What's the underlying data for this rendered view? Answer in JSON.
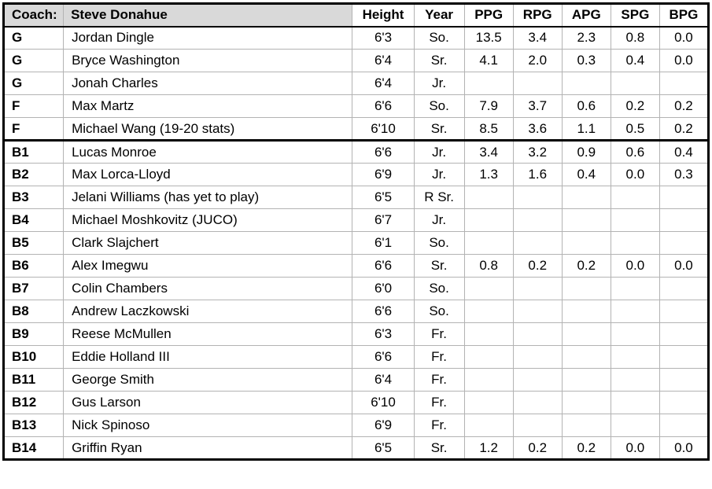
{
  "header": {
    "coach_label": "Coach:",
    "coach_name": "Steve Donahue",
    "columns": [
      "Height",
      "Year",
      "PPG",
      "RPG",
      "APG",
      "SPG",
      "BPG"
    ]
  },
  "colors": {
    "header_bg": "#d9d9d9",
    "grid_line": "#b3b3b3",
    "section_border": "#000000",
    "row_bg": "#ffffff",
    "text": "#000000"
  },
  "rows": [
    {
      "pos": "G",
      "name": "Jordan Dingle",
      "height": "6'3",
      "year": "So.",
      "ppg": "13.5",
      "rpg": "3.4",
      "apg": "2.3",
      "spg": "0.8",
      "bpg": "0.0",
      "section_start": false
    },
    {
      "pos": "G",
      "name": "Bryce Washington",
      "height": "6'4",
      "year": "Sr.",
      "ppg": "4.1",
      "rpg": "2.0",
      "apg": "0.3",
      "spg": "0.4",
      "bpg": "0.0",
      "section_start": false
    },
    {
      "pos": "G",
      "name": "Jonah Charles",
      "height": "6'4",
      "year": "Jr.",
      "ppg": "",
      "rpg": "",
      "apg": "",
      "spg": "",
      "bpg": "",
      "section_start": false
    },
    {
      "pos": "F",
      "name": "Max Martz",
      "height": "6'6",
      "year": "So.",
      "ppg": "7.9",
      "rpg": "3.7",
      "apg": "0.6",
      "spg": "0.2",
      "bpg": "0.2",
      "section_start": false
    },
    {
      "pos": "F",
      "name": "Michael Wang (19-20 stats)",
      "height": "6'10",
      "year": "Sr.",
      "ppg": "8.5",
      "rpg": "3.6",
      "apg": "1.1",
      "spg": "0.5",
      "bpg": "0.2",
      "section_start": false
    },
    {
      "pos": "B1",
      "name": "Lucas Monroe",
      "height": "6'6",
      "year": "Jr.",
      "ppg": "3.4",
      "rpg": "3.2",
      "apg": "0.9",
      "spg": "0.6",
      "bpg": "0.4",
      "section_start": true
    },
    {
      "pos": "B2",
      "name": "Max Lorca-Lloyd",
      "height": "6'9",
      "year": "Jr.",
      "ppg": "1.3",
      "rpg": "1.6",
      "apg": "0.4",
      "spg": "0.0",
      "bpg": "0.3",
      "section_start": false
    },
    {
      "pos": "B3",
      "name": "Jelani Williams (has yet to play)",
      "height": "6'5",
      "year": "R Sr.",
      "ppg": "",
      "rpg": "",
      "apg": "",
      "spg": "",
      "bpg": "",
      "section_start": false
    },
    {
      "pos": "B4",
      "name": "Michael Moshkovitz (JUCO)",
      "height": "6'7",
      "year": "Jr.",
      "ppg": "",
      "rpg": "",
      "apg": "",
      "spg": "",
      "bpg": "",
      "section_start": false
    },
    {
      "pos": "B5",
      "name": "Clark Slajchert",
      "height": "6'1",
      "year": "So.",
      "ppg": "",
      "rpg": "",
      "apg": "",
      "spg": "",
      "bpg": "",
      "section_start": false
    },
    {
      "pos": "B6",
      "name": "Alex Imegwu",
      "height": "6'6",
      "year": "Sr.",
      "ppg": "0.8",
      "rpg": "0.2",
      "apg": "0.2",
      "spg": "0.0",
      "bpg": "0.0",
      "section_start": false
    },
    {
      "pos": "B7",
      "name": "Colin Chambers",
      "height": "6'0",
      "year": "So.",
      "ppg": "",
      "rpg": "",
      "apg": "",
      "spg": "",
      "bpg": "",
      "section_start": false
    },
    {
      "pos": "B8",
      "name": "Andrew Laczkowski",
      "height": "6'6",
      "year": "So.",
      "ppg": "",
      "rpg": "",
      "apg": "",
      "spg": "",
      "bpg": "",
      "section_start": false
    },
    {
      "pos": "B9",
      "name": "Reese McMullen",
      "height": "6'3",
      "year": "Fr.",
      "ppg": "",
      "rpg": "",
      "apg": "",
      "spg": "",
      "bpg": "",
      "section_start": false
    },
    {
      "pos": "B10",
      "name": "Eddie Holland III",
      "height": "6'6",
      "year": "Fr.",
      "ppg": "",
      "rpg": "",
      "apg": "",
      "spg": "",
      "bpg": "",
      "section_start": false
    },
    {
      "pos": "B11",
      "name": "George Smith",
      "height": "6'4",
      "year": "Fr.",
      "ppg": "",
      "rpg": "",
      "apg": "",
      "spg": "",
      "bpg": "",
      "section_start": false
    },
    {
      "pos": "B12",
      "name": "Gus Larson",
      "height": "6'10",
      "year": "Fr.",
      "ppg": "",
      "rpg": "",
      "apg": "",
      "spg": "",
      "bpg": "",
      "section_start": false
    },
    {
      "pos": "B13",
      "name": "Nick Spinoso",
      "height": "6'9",
      "year": "Fr.",
      "ppg": "",
      "rpg": "",
      "apg": "",
      "spg": "",
      "bpg": "",
      "section_start": false
    },
    {
      "pos": "B14",
      "name": "Griffin Ryan",
      "height": "6'5",
      "year": "Sr.",
      "ppg": "1.2",
      "rpg": "0.2",
      "apg": "0.2",
      "spg": "0.0",
      "bpg": "0.0",
      "section_start": false
    }
  ]
}
